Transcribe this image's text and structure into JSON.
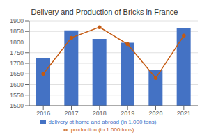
{
  "chart_data": {
    "type": "bar",
    "title": "Delivery and Production of Bricks in France",
    "categories": [
      "2016",
      "2017",
      "2018",
      "2019",
      "2020",
      "2021"
    ],
    "series": [
      {
        "name": "delivery at home and abroad (in 1.000 tons)",
        "type": "bar",
        "color": "#4472C4",
        "values": [
          1725,
          1855,
          1815,
          1797,
          1667,
          1867
        ]
      },
      {
        "name": "production (in 1.000 tons)",
        "type": "line",
        "color": "#C55A11",
        "marker": "circle",
        "values": [
          1650,
          1820,
          1870,
          1790,
          1630,
          1830
        ]
      }
    ],
    "ylim": [
      1500,
      1900
    ],
    "yticks": [
      1500,
      1550,
      1600,
      1650,
      1700,
      1750,
      1800,
      1850,
      1900
    ],
    "grid": true,
    "legend": "bottom"
  }
}
